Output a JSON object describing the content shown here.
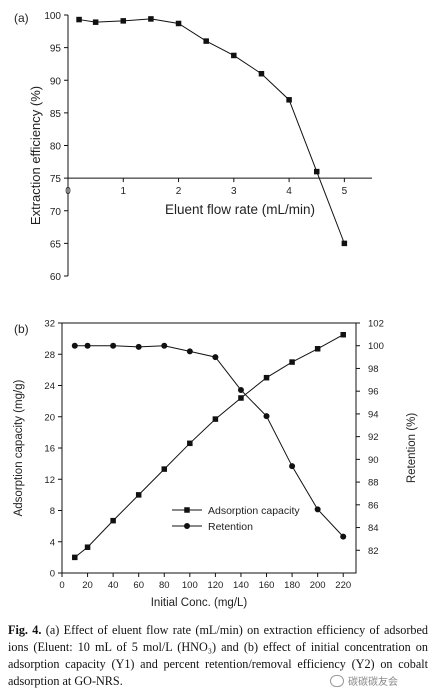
{
  "caption": {
    "label": "Fig. 4.",
    "text": "(a) Effect of eluent flow rate (mL/min) on extraction efficiency of adsorbed ions (Eluent: 10 mL of 5 mol/L (HNO₃) and (b) effect of initial concentration on adsorption capacity (Y1) and percent retention/removal efficiency (Y2) on cobalt adsorption at GO-NRS."
  },
  "watermark": "碳碳碳友会",
  "chart_data": [
    {
      "panel": "(a)",
      "type": "line",
      "marker": "square",
      "xlabel": "Eluent flow rate (mL/min)",
      "ylabel": "Extraction efficiency (%)",
      "xlim": [
        0,
        5.5
      ],
      "ylim": [
        60,
        100
      ],
      "xticks": [
        0,
        1,
        2,
        3,
        4,
        5
      ],
      "yticks": [
        60,
        65,
        70,
        75,
        80,
        85,
        90,
        95,
        100
      ],
      "x_axis_at_y": 75,
      "grid": false,
      "series": [
        {
          "x": [
            0.2,
            0.5,
            1.0,
            1.5,
            2.0,
            2.5,
            3.0,
            3.5,
            4.0,
            4.5,
            5.0
          ],
          "values": [
            99.3,
            98.9,
            99.1,
            99.4,
            98.7,
            96.0,
            93.8,
            91.0,
            87.0,
            76.0,
            65.0
          ]
        }
      ]
    },
    {
      "panel": "(b)",
      "type": "line",
      "xlabel": "Initial Conc. (mg/L)",
      "ylabel": "Adsorption capacity (mg/g)",
      "y2label": "Retention (%)",
      "xlim": [
        0,
        230
      ],
      "ylim": [
        0,
        32
      ],
      "y2lim": [
        80,
        102
      ],
      "xticks": [
        0,
        20,
        40,
        60,
        80,
        100,
        120,
        140,
        160,
        180,
        200,
        220
      ],
      "yticks": [
        0,
        4,
        8,
        12,
        16,
        20,
        24,
        28,
        32
      ],
      "y2ticks": [
        82,
        84,
        86,
        88,
        90,
        92,
        94,
        96,
        98,
        100,
        102
      ],
      "legend": "bottom-left",
      "grid": false,
      "x": [
        10,
        20,
        40,
        60,
        80,
        100,
        120,
        140,
        160,
        180,
        200,
        220
      ],
      "series": [
        {
          "name": "Adsorption capacity",
          "axis": "left",
          "marker": "square",
          "values": [
            2.0,
            3.3,
            6.7,
            10.0,
            13.3,
            16.6,
            19.7,
            22.4,
            25.0,
            27.0,
            28.7,
            30.5
          ]
        },
        {
          "name": "Retention",
          "axis": "right",
          "marker": "circle",
          "values": [
            100.0,
            100.0,
            100.0,
            99.9,
            100.0,
            99.5,
            99.0,
            96.1,
            93.8,
            89.4,
            85.6,
            83.2
          ]
        }
      ]
    }
  ]
}
